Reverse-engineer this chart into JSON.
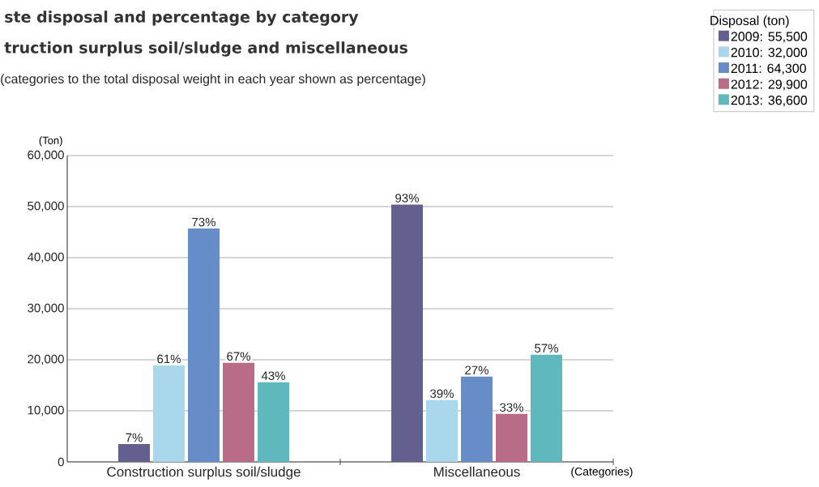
{
  "chart_data": {
    "type": "bar",
    "title": "ste disposal and percentage by category",
    "subtitle": "truction surplus soil/sludge and miscellaneous",
    "annotations": [
      "(categories to the total disposal weight in each year shown as percentage)",
      "7%",
      "93%",
      "61%",
      "39%",
      "73%",
      "27%",
      "67%",
      "33%",
      "43%",
      "57%"
    ],
    "xlabel": "(Categories)",
    "ylabel": "(Ton)",
    "legend_title": "Disposal (ton)",
    "categories": [
      "Construction surplus soil/sludge",
      "Miscellaneous"
    ],
    "series": [
      {
        "name": "2009: 55,500",
        "color": "#63608f",
        "values": [
          3500,
          50400
        ]
      },
      {
        "name": "2010: 32,000",
        "color": "#a9d7ec",
        "values": [
          18900,
          12100
        ]
      },
      {
        "name": "2011: 64,300",
        "color": "#668dc8",
        "values": [
          45700,
          16700
        ]
      },
      {
        "name": "2012: 29,900",
        "color": "#b86c87",
        "values": [
          19400,
          9400
        ]
      },
      {
        "name": "2013: 36,600",
        "color": "#5fb8be",
        "values": [
          15600,
          21000
        ]
      }
    ],
    "ylim": [
      0,
      60000
    ],
    "yticks": [
      {
        "value": 0,
        "label": "0"
      },
      {
        "value": 10000,
        "label": "10,000"
      },
      {
        "value": 20000,
        "label": "20,000"
      },
      {
        "value": 30000,
        "label": "30,000"
      },
      {
        "value": 40000,
        "label": "40,000"
      },
      {
        "value": 50000,
        "label": "50,000"
      },
      {
        "value": 60000,
        "label": "60,000"
      }
    ],
    "grid": "y",
    "legend": "top right"
  }
}
